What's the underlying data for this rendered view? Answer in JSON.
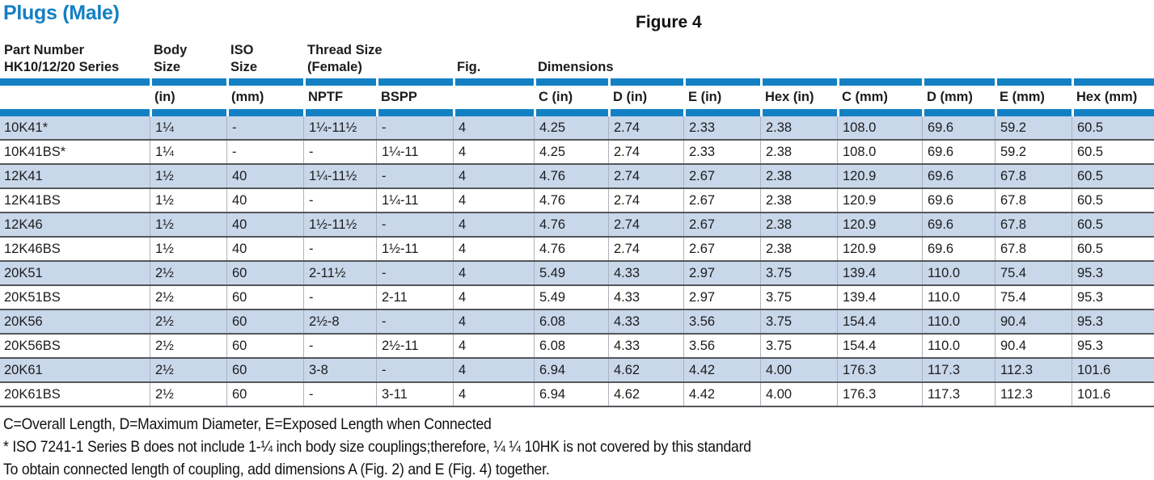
{
  "page": {
    "title": "Plugs (Male)",
    "figure_label": "Figure 4"
  },
  "colors": {
    "accent_blue": "#1380c4",
    "row_shade": "#c9d7ea",
    "row_divider": "#54565a",
    "column_line": "#abb4be"
  },
  "table": {
    "header_groups": [
      {
        "name": "part-number",
        "line1": "Part Number",
        "line2": "HK10/12/20 Series",
        "col": 1,
        "span": 1
      },
      {
        "name": "body-size",
        "line1": "Body",
        "line2": "Size",
        "col": 2,
        "span": 1
      },
      {
        "name": "iso-size",
        "line1": "ISO",
        "line2": "Size",
        "col": 3,
        "span": 1
      },
      {
        "name": "thread-size",
        "line1": "Thread Size",
        "line2": "(Female)",
        "col": 4,
        "span": 2
      },
      {
        "name": "fig",
        "line1": "",
        "line2": "Fig.",
        "col": 6,
        "span": 1
      },
      {
        "name": "dimensions",
        "line1": "",
        "line2": "Dimensions",
        "col": 7,
        "span": 8
      }
    ],
    "subheaders": [
      "",
      "(in)",
      "(mm)",
      "NPTF",
      "BSPP",
      "",
      "C (in)",
      "D (in)",
      "E (in)",
      "Hex (in)",
      "C (mm)",
      "D (mm)",
      "E (mm)",
      "Hex (mm)"
    ],
    "rows": [
      [
        "10K41*",
        "1¼",
        "-",
        "1¼-11½",
        "-",
        "4",
        "4.25",
        "2.74",
        "2.33",
        "2.38",
        "108.0",
        "69.6",
        "59.2",
        "60.5"
      ],
      [
        "10K41BS*",
        "1¼",
        "-",
        "-",
        "1¼-11",
        "4",
        "4.25",
        "2.74",
        "2.33",
        "2.38",
        "108.0",
        "69.6",
        "59.2",
        "60.5"
      ],
      [
        "12K41",
        "1½",
        "40",
        "1¼-11½",
        "-",
        "4",
        "4.76",
        "2.74",
        "2.67",
        "2.38",
        "120.9",
        "69.6",
        "67.8",
        "60.5"
      ],
      [
        "12K41BS",
        "1½",
        "40",
        "-",
        "1¼-11",
        "4",
        "4.76",
        "2.74",
        "2.67",
        "2.38",
        "120.9",
        "69.6",
        "67.8",
        "60.5"
      ],
      [
        "12K46",
        "1½",
        "40",
        "1½-11½",
        "-",
        "4",
        "4.76",
        "2.74",
        "2.67",
        "2.38",
        "120.9",
        "69.6",
        "67.8",
        "60.5"
      ],
      [
        "12K46BS",
        "1½",
        "40",
        "-",
        "1½-11",
        "4",
        "4.76",
        "2.74",
        "2.67",
        "2.38",
        "120.9",
        "69.6",
        "67.8",
        "60.5"
      ],
      [
        "20K51",
        "2½",
        "60",
        "2-11½",
        "-",
        "4",
        "5.49",
        "4.33",
        "2.97",
        "3.75",
        "139.4",
        "110.0",
        "75.4",
        "95.3"
      ],
      [
        "20K51BS",
        "2½",
        "60",
        "-",
        "2-11",
        "4",
        "5.49",
        "4.33",
        "2.97",
        "3.75",
        "139.4",
        "110.0",
        "75.4",
        "95.3"
      ],
      [
        "20K56",
        "2½",
        "60",
        "2½-8",
        "-",
        "4",
        "6.08",
        "4.33",
        "3.56",
        "3.75",
        "154.4",
        "110.0",
        "90.4",
        "95.3"
      ],
      [
        "20K56BS",
        "2½",
        "60",
        "-",
        "2½-11",
        "4",
        "6.08",
        "4.33",
        "3.56",
        "3.75",
        "154.4",
        "110.0",
        "90.4",
        "95.3"
      ],
      [
        "20K61",
        "2½",
        "60",
        "3-8",
        "-",
        "4",
        "6.94",
        "4.62",
        "4.42",
        "4.00",
        "176.3",
        "117.3",
        "112.3",
        "101.6"
      ],
      [
        "20K61BS",
        "2½",
        "60",
        "-",
        "3-11",
        "4",
        "6.94",
        "4.62",
        "4.42",
        "4.00",
        "176.3",
        "117.3",
        "112.3",
        "101.6"
      ]
    ],
    "column_count": 14
  },
  "footnotes": [
    "C=Overall Length, D=Maximum Diameter, E=Exposed Length when Connected",
    "* ISO 7241-1 Series B does not include 1-¼ inch body size couplings;therefore, ¼ ¼ 10HK is not covered by this standard",
    "To obtain connected length of coupling, add dimensions A (Fig. 2) and E (Fig. 4) together."
  ]
}
